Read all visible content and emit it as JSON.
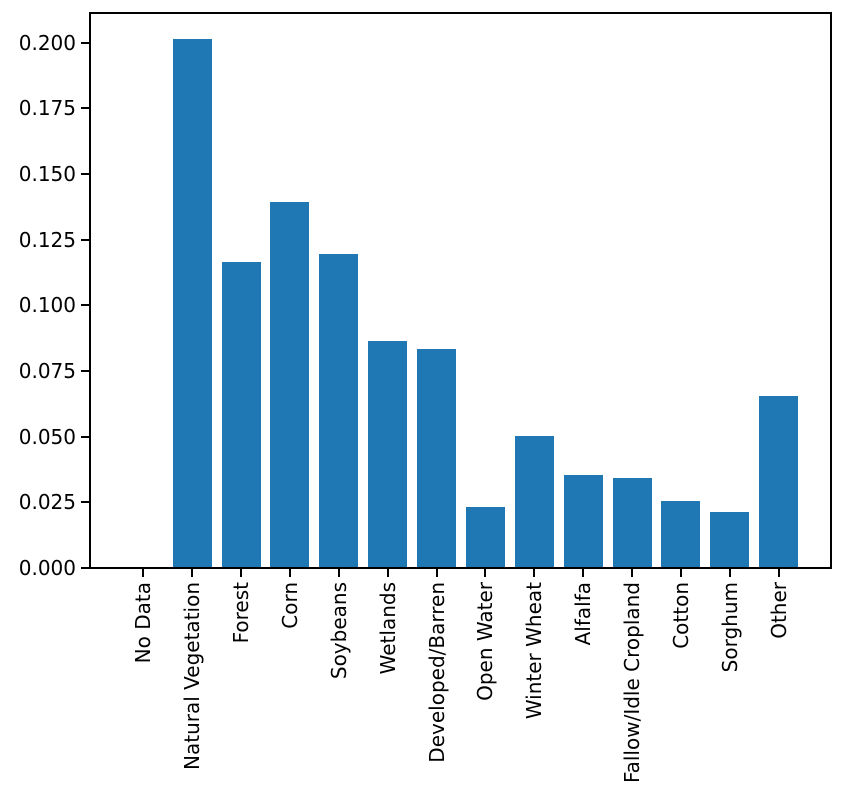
{
  "figure": {
    "background_color": "#ffffff",
    "text_color": "#000000",
    "spine_color": "#000000"
  },
  "chart_data": {
    "type": "bar",
    "title": "",
    "xlabel": "",
    "ylabel": "",
    "categories": [
      "No Data",
      "Natural Vegetation",
      "Forest",
      "Corn",
      "Soybeans",
      "Wetlands",
      "Developed/Barren",
      "Open Water",
      "Winter Wheat",
      "Alfalfa",
      "Fallow/Idle Cropland",
      "Cotton",
      "Sorghum",
      "Other"
    ],
    "values": [
      0.0,
      0.201,
      0.116,
      0.139,
      0.119,
      0.086,
      0.083,
      0.023,
      0.05,
      0.035,
      0.034,
      0.025,
      0.021,
      0.065
    ],
    "bar_color": "#1f77b4",
    "ylim": [
      0,
      0.2113
    ],
    "yticks": [
      0.0,
      0.025,
      0.05,
      0.075,
      0.1,
      0.125,
      0.15,
      0.175,
      0.2
    ],
    "ytick_labels": [
      "0.000",
      "0.025",
      "0.050",
      "0.075",
      "0.100",
      "0.125",
      "0.150",
      "0.175",
      "0.200"
    ],
    "x_tick_rotation": 90,
    "grid": false,
    "legend": null
  }
}
